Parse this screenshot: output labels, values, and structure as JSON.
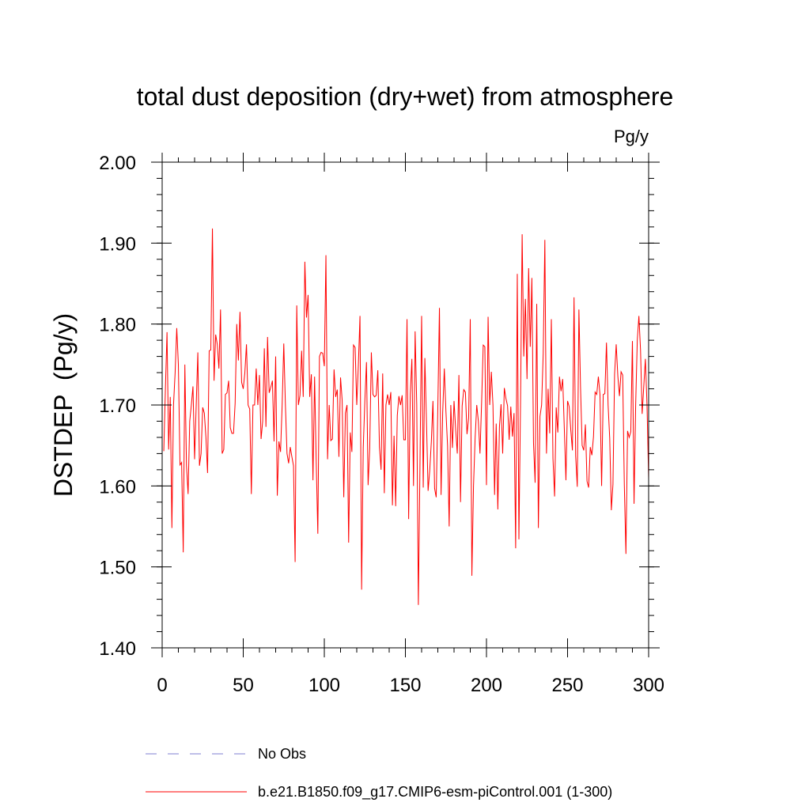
{
  "chart_data": {
    "type": "line",
    "title": "total dust deposition (dry+wet) from atmosphere",
    "units": "Pg/y",
    "ylabel": "DSTDEP  (Pg/y)",
    "xlabel": "",
    "xlim": [
      0,
      300
    ],
    "ylim": [
      1.4,
      2.0
    ],
    "xticks": [
      0,
      50,
      100,
      150,
      200,
      250,
      300
    ],
    "xtick_labels": [
      "0",
      "50",
      "100",
      "150",
      "200",
      "250",
      "300"
    ],
    "yticks": [
      1.4,
      1.5,
      1.6,
      1.7,
      1.8,
      1.9,
      2.0
    ],
    "ytick_labels": [
      "1.40",
      "1.50",
      "1.60",
      "1.70",
      "1.80",
      "1.90",
      "2.00"
    ],
    "grid": false,
    "legend_position": "bottom",
    "series": [
      {
        "name": "b.e21.B1850.f09_g17.CMIP6-esm-piControl.001 (1-300)",
        "color": "#ff0000",
        "x_start": 1,
        "values": [
          1.643,
          1.72,
          1.79,
          1.645,
          1.71,
          1.548,
          1.7,
          1.74,
          1.795,
          1.75,
          1.626,
          1.629,
          1.518,
          1.75,
          1.625,
          1.59,
          1.68,
          1.7,
          1.723,
          1.633,
          1.7,
          1.765,
          1.625,
          1.64,
          1.697,
          1.69,
          1.66,
          1.616,
          1.767,
          1.768,
          1.918,
          1.73,
          1.787,
          1.775,
          1.745,
          1.818,
          1.64,
          1.645,
          1.713,
          1.715,
          1.73,
          1.672,
          1.665,
          1.665,
          1.702,
          1.8,
          1.755,
          1.815,
          1.728,
          1.72,
          1.74,
          1.775,
          1.7,
          1.695,
          1.59,
          1.7,
          1.7,
          1.745,
          1.7,
          1.737,
          1.658,
          1.68,
          1.77,
          1.673,
          1.784,
          1.715,
          1.722,
          1.73,
          1.655,
          1.76,
          1.588,
          1.655,
          1.642,
          1.7,
          1.776,
          1.7,
          1.64,
          1.628,
          1.648,
          1.636,
          1.625,
          1.506,
          1.823,
          1.7,
          1.712,
          1.767,
          1.71,
          1.877,
          1.808,
          1.836,
          1.71,
          1.738,
          1.607,
          1.735,
          1.63,
          1.541,
          1.76,
          1.765,
          1.764,
          1.748,
          1.885,
          1.633,
          1.7,
          1.656,
          1.658,
          1.744,
          1.71,
          1.719,
          1.636,
          1.734,
          1.706,
          1.586,
          1.69,
          1.7,
          1.53,
          1.666,
          1.642,
          1.774,
          1.771,
          1.7,
          1.75,
          1.81,
          1.472,
          1.647,
          1.705,
          1.753,
          1.601,
          1.646,
          1.765,
          1.713,
          1.71,
          1.712,
          1.743,
          1.648,
          1.62,
          1.739,
          1.591,
          1.7,
          1.713,
          1.7,
          1.716,
          1.576,
          1.662,
          1.575,
          1.687,
          1.711,
          1.7,
          1.712,
          1.657,
          1.657,
          1.806,
          1.559,
          1.713,
          1.757,
          1.6,
          1.791,
          1.7,
          1.453,
          1.628,
          1.81,
          1.598,
          1.758,
          1.68,
          1.594,
          1.619,
          1.655,
          1.705,
          1.597,
          1.586,
          1.697,
          1.82,
          1.589,
          1.691,
          1.745,
          1.692,
          1.65,
          1.55,
          1.7,
          1.647,
          1.705,
          1.67,
          1.64,
          1.737,
          1.58,
          1.699,
          1.719,
          1.716,
          1.664,
          1.684,
          1.806,
          1.489,
          1.6,
          1.659,
          1.7,
          1.68,
          1.64,
          1.703,
          1.774,
          1.772,
          1.601,
          1.809,
          1.7,
          1.741,
          1.7,
          1.589,
          1.677,
          1.571,
          1.673,
          1.701,
          1.64,
          1.721,
          1.708,
          1.699,
          1.657,
          1.698,
          1.661,
          1.69,
          1.523,
          1.862,
          1.534,
          1.702,
          1.911,
          1.76,
          1.831,
          1.732,
          1.869,
          1.772,
          1.857,
          1.653,
          1.604,
          1.825,
          1.548,
          1.686,
          1.7,
          1.764,
          1.904,
          1.64,
          1.72,
          1.665,
          1.806,
          1.634,
          1.587,
          1.697,
          1.666,
          1.735,
          1.717,
          1.732,
          1.671,
          1.607,
          1.705,
          1.698,
          1.669,
          1.644,
          1.833,
          1.637,
          1.599,
          1.818,
          1.722,
          1.65,
          1.644,
          1.676,
          1.606,
          1.598,
          1.648,
          1.638,
          1.661,
          1.716,
          1.713,
          1.735,
          1.713,
          1.6,
          1.713,
          1.714,
          1.777,
          1.7,
          1.659,
          1.57,
          1.602,
          1.738,
          1.775,
          1.736,
          1.711,
          1.741,
          1.737,
          1.602,
          1.516,
          1.668,
          1.66,
          1.667,
          1.779,
          1.578,
          1.7,
          1.78,
          1.81,
          1.768,
          1.689,
          1.723,
          1.757,
          1.7,
          1.609
        ]
      },
      {
        "name": "No Obs",
        "color": "#7f7fd0",
        "dashed": true,
        "values": []
      }
    ]
  }
}
